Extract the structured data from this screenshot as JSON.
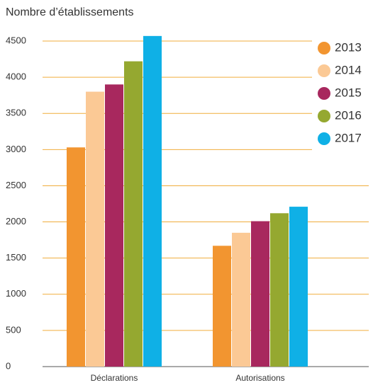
{
  "chart_data": {
    "type": "bar",
    "title": "Nombre d’établissements",
    "categories": [
      "Déclarations",
      "Autorisations"
    ],
    "series": [
      {
        "name": "2013",
        "color": "#f29530",
        "values": [
          3030,
          1670
        ]
      },
      {
        "name": "2014",
        "color": "#fbc995",
        "values": [
          3800,
          1850
        ]
      },
      {
        "name": "2015",
        "color": "#a8285e",
        "values": [
          3900,
          2010
        ]
      },
      {
        "name": "2016",
        "color": "#95a830",
        "values": [
          4220,
          2120
        ]
      },
      {
        "name": "2017",
        "color": "#0fb0e6",
        "values": [
          4570,
          2210
        ]
      }
    ],
    "ylim": [
      0,
      4500
    ],
    "yticks": [
      0,
      500,
      1000,
      1500,
      2000,
      2500,
      3000,
      3500,
      4000,
      4500
    ],
    "grid": true,
    "legend": "right"
  }
}
